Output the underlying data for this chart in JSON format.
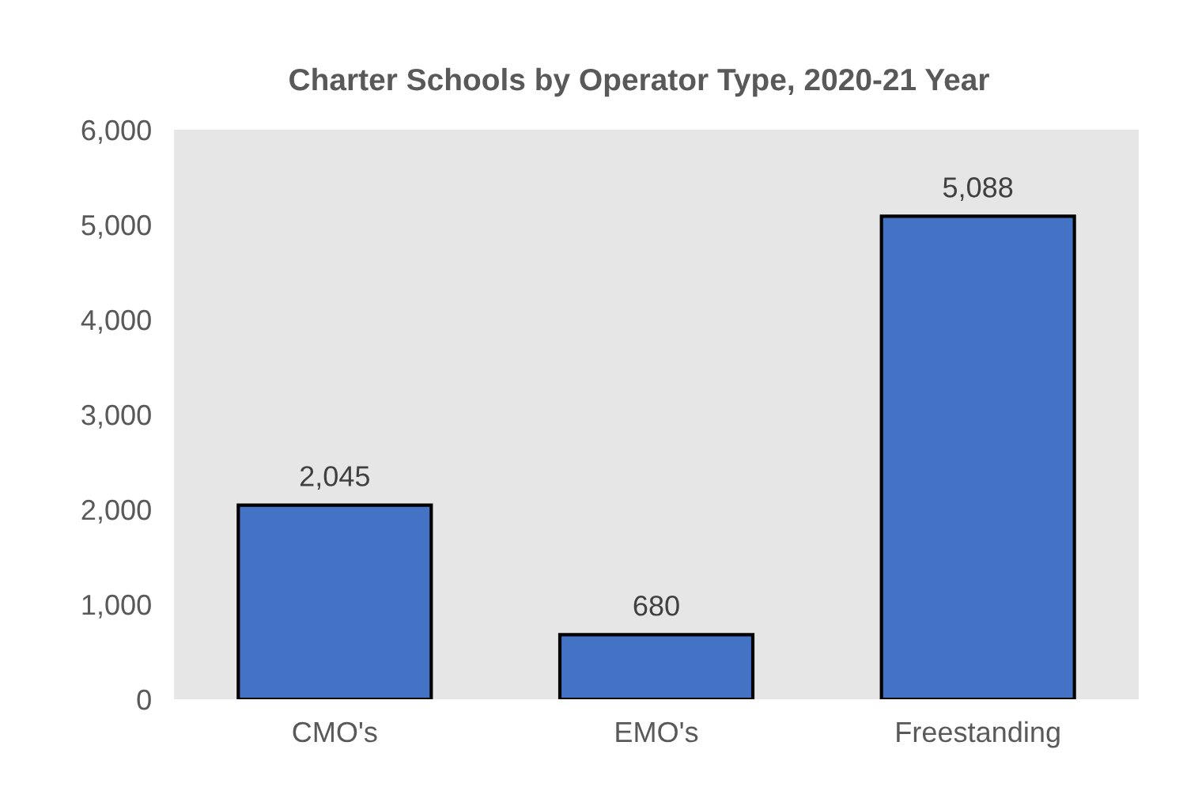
{
  "chart_data": {
    "type": "bar",
    "title": "Charter Schools by Operator Type, 2020-21 Year",
    "categories": [
      "CMO's",
      "EMO's",
      "Freestanding"
    ],
    "values": [
      2045,
      680,
      5088
    ],
    "value_labels": [
      "2,045",
      "680",
      "5,088"
    ],
    "color": "#4472c4",
    "ylim": [
      0,
      6000
    ],
    "yticks": [
      {
        "value": 0,
        "label": "0"
      },
      {
        "value": 1000,
        "label": "1,000"
      },
      {
        "value": 2000,
        "label": "2,000"
      },
      {
        "value": 3000,
        "label": "3,000"
      },
      {
        "value": 4000,
        "label": "4,000"
      },
      {
        "value": 5000,
        "label": "5,000"
      },
      {
        "value": 6000,
        "label": "6,000"
      }
    ],
    "grid": false
  }
}
